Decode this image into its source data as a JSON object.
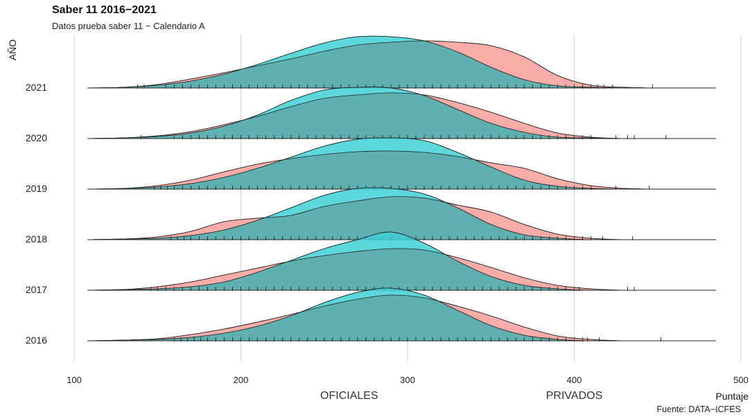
{
  "title": "Saber 11 2016−2021",
  "subtitle": "Datos prueba saber 11 − Calendario A",
  "source": "Fuente: DATA−ICFES",
  "chart_data": {
    "type": "ridgeline-density",
    "title": "Saber 11 2016−2021",
    "subtitle": "Datos prueba saber 11 − Calendario A",
    "ylabel": "AÑO",
    "xlabel": "Puntaje",
    "xlim": [
      100,
      500
    ],
    "xticks": [
      100,
      200,
      300,
      400,
      500
    ],
    "x_category_labels": [
      {
        "x": 265,
        "label": "OFICIALES"
      },
      {
        "x": 400,
        "label": "PRIVADOS"
      }
    ],
    "grid": true,
    "colors": {
      "series_a": "#f8a39e",
      "series_b": "#3fd0d6",
      "overlap": "#5fb0b0",
      "outline": "#222222",
      "rug": "#2a2a2a"
    },
    "years": [
      "2021",
      "2020",
      "2019",
      "2018",
      "2017",
      "2016"
    ],
    "x": [
      108,
      130,
      150,
      170,
      190,
      210,
      230,
      250,
      270,
      290,
      310,
      330,
      350,
      370,
      390,
      410,
      430,
      450,
      470,
      485
    ],
    "ridges": [
      {
        "year": "2021",
        "series_a": [
          0,
          0.01,
          0.05,
          0.13,
          0.22,
          0.32,
          0.42,
          0.53,
          0.62,
          0.66,
          0.68,
          0.66,
          0.61,
          0.45,
          0.18,
          0.04,
          0.01,
          0,
          0,
          0
        ],
        "series_b": [
          0,
          0.01,
          0.04,
          0.1,
          0.2,
          0.34,
          0.5,
          0.65,
          0.74,
          0.74,
          0.68,
          0.52,
          0.3,
          0.12,
          0.03,
          0.01,
          0,
          0,
          0,
          0
        ],
        "rug": [
          138,
          142,
          155,
          160,
          165,
          170,
          175,
          180,
          185,
          190,
          195,
          200,
          205,
          210,
          215,
          220,
          225,
          230,
          235,
          240,
          245,
          250,
          255,
          260,
          265,
          270,
          275,
          280,
          285,
          290,
          295,
          300,
          305,
          310,
          315,
          320,
          325,
          330,
          335,
          340,
          345,
          350,
          355,
          360,
          365,
          370,
          375,
          380,
          385,
          390,
          395,
          400,
          405,
          410,
          414,
          418,
          423,
          447
        ]
      },
      {
        "year": "2020",
        "series_a": [
          0,
          0.01,
          0.04,
          0.1,
          0.2,
          0.32,
          0.46,
          0.58,
          0.63,
          0.66,
          0.63,
          0.52,
          0.38,
          0.22,
          0.08,
          0.02,
          0,
          0,
          0,
          0
        ],
        "series_b": [
          0,
          0.01,
          0.03,
          0.08,
          0.18,
          0.34,
          0.55,
          0.7,
          0.74,
          0.73,
          0.62,
          0.42,
          0.22,
          0.09,
          0.02,
          0.01,
          0,
          0,
          0,
          0
        ],
        "rug": [
          140,
          160,
          165,
          170,
          175,
          180,
          185,
          190,
          195,
          200,
          205,
          210,
          215,
          220,
          225,
          230,
          235,
          240,
          245,
          250,
          255,
          260,
          265,
          270,
          275,
          280,
          285,
          290,
          295,
          300,
          305,
          310,
          315,
          320,
          325,
          330,
          335,
          340,
          345,
          350,
          355,
          360,
          365,
          370,
          375,
          380,
          385,
          390,
          395,
          400,
          405,
          410,
          425,
          432,
          436,
          455
        ]
      },
      {
        "year": "2019",
        "series_a": [
          0,
          0.01,
          0.05,
          0.13,
          0.25,
          0.36,
          0.44,
          0.5,
          0.54,
          0.55,
          0.53,
          0.47,
          0.38,
          0.3,
          0.15,
          0.05,
          0.01,
          0,
          0,
          0
        ],
        "series_b": [
          0,
          0.01,
          0.03,
          0.08,
          0.17,
          0.3,
          0.46,
          0.62,
          0.72,
          0.74,
          0.7,
          0.53,
          0.32,
          0.13,
          0.04,
          0.01,
          0,
          0,
          0,
          0
        ],
        "rug": [
          148,
          152,
          156,
          160,
          165,
          170,
          175,
          180,
          185,
          190,
          195,
          200,
          205,
          210,
          215,
          220,
          225,
          230,
          235,
          240,
          245,
          250,
          255,
          260,
          265,
          270,
          275,
          280,
          285,
          290,
          295,
          300,
          305,
          310,
          315,
          320,
          325,
          330,
          335,
          340,
          345,
          350,
          355,
          360,
          365,
          370,
          375,
          380,
          385,
          390,
          395,
          400,
          405,
          410,
          425,
          445
        ]
      },
      {
        "year": "2018",
        "series_a": [
          0,
          0.01,
          0.04,
          0.12,
          0.26,
          0.31,
          0.35,
          0.48,
          0.56,
          0.62,
          0.6,
          0.5,
          0.4,
          0.22,
          0.08,
          0.02,
          0,
          0,
          0,
          0
        ],
        "series_b": [
          0,
          0.01,
          0.02,
          0.06,
          0.14,
          0.28,
          0.46,
          0.64,
          0.74,
          0.74,
          0.66,
          0.46,
          0.22,
          0.07,
          0.02,
          0,
          0,
          0,
          0,
          0
        ],
        "rug": [
          158,
          162,
          166,
          170,
          175,
          180,
          185,
          190,
          195,
          200,
          205,
          210,
          215,
          220,
          225,
          230,
          235,
          240,
          245,
          250,
          255,
          260,
          265,
          270,
          275,
          280,
          285,
          290,
          295,
          300,
          305,
          310,
          315,
          320,
          325,
          330,
          335,
          340,
          345,
          350,
          355,
          360,
          365,
          370,
          375,
          380,
          385,
          390,
          395,
          400,
          405,
          410,
          417,
          435
        ]
      },
      {
        "year": "2017",
        "series_a": [
          0,
          0.01,
          0.05,
          0.12,
          0.22,
          0.32,
          0.42,
          0.5,
          0.56,
          0.6,
          0.58,
          0.47,
          0.33,
          0.18,
          0.07,
          0.02,
          0,
          0,
          0,
          0
        ],
        "series_b": [
          0,
          0.01,
          0.02,
          0.05,
          0.12,
          0.26,
          0.43,
          0.6,
          0.73,
          0.84,
          0.68,
          0.42,
          0.2,
          0.07,
          0.02,
          0,
          0,
          0,
          0,
          0
        ],
        "rug": [
          146,
          150,
          155,
          160,
          165,
          170,
          175,
          180,
          185,
          190,
          195,
          200,
          205,
          210,
          215,
          220,
          225,
          230,
          235,
          240,
          245,
          250,
          255,
          260,
          265,
          270,
          275,
          280,
          285,
          290,
          295,
          300,
          305,
          310,
          315,
          320,
          325,
          330,
          335,
          340,
          345,
          350,
          355,
          360,
          365,
          370,
          375,
          380,
          385,
          390,
          395,
          400,
          403,
          432,
          436
        ]
      },
      {
        "year": "2016",
        "series_a": [
          0,
          0.01,
          0.03,
          0.09,
          0.17,
          0.27,
          0.38,
          0.5,
          0.6,
          0.66,
          0.62,
          0.5,
          0.36,
          0.2,
          0.07,
          0.02,
          0,
          0,
          0,
          0
        ],
        "series_b": [
          0,
          0.01,
          0.02,
          0.05,
          0.11,
          0.21,
          0.36,
          0.55,
          0.7,
          0.76,
          0.66,
          0.44,
          0.22,
          0.08,
          0.02,
          0,
          0,
          0,
          0,
          0
        ],
        "rug": [
          160,
          164,
          168,
          172,
          176,
          180,
          185,
          190,
          195,
          200,
          205,
          210,
          215,
          220,
          225,
          230,
          235,
          240,
          245,
          250,
          255,
          260,
          265,
          270,
          275,
          280,
          285,
          290,
          295,
          300,
          305,
          310,
          315,
          320,
          325,
          330,
          335,
          340,
          345,
          350,
          355,
          360,
          365,
          370,
          375,
          380,
          385,
          390,
          395,
          400,
          405,
          408,
          415,
          452
        ]
      }
    ]
  }
}
